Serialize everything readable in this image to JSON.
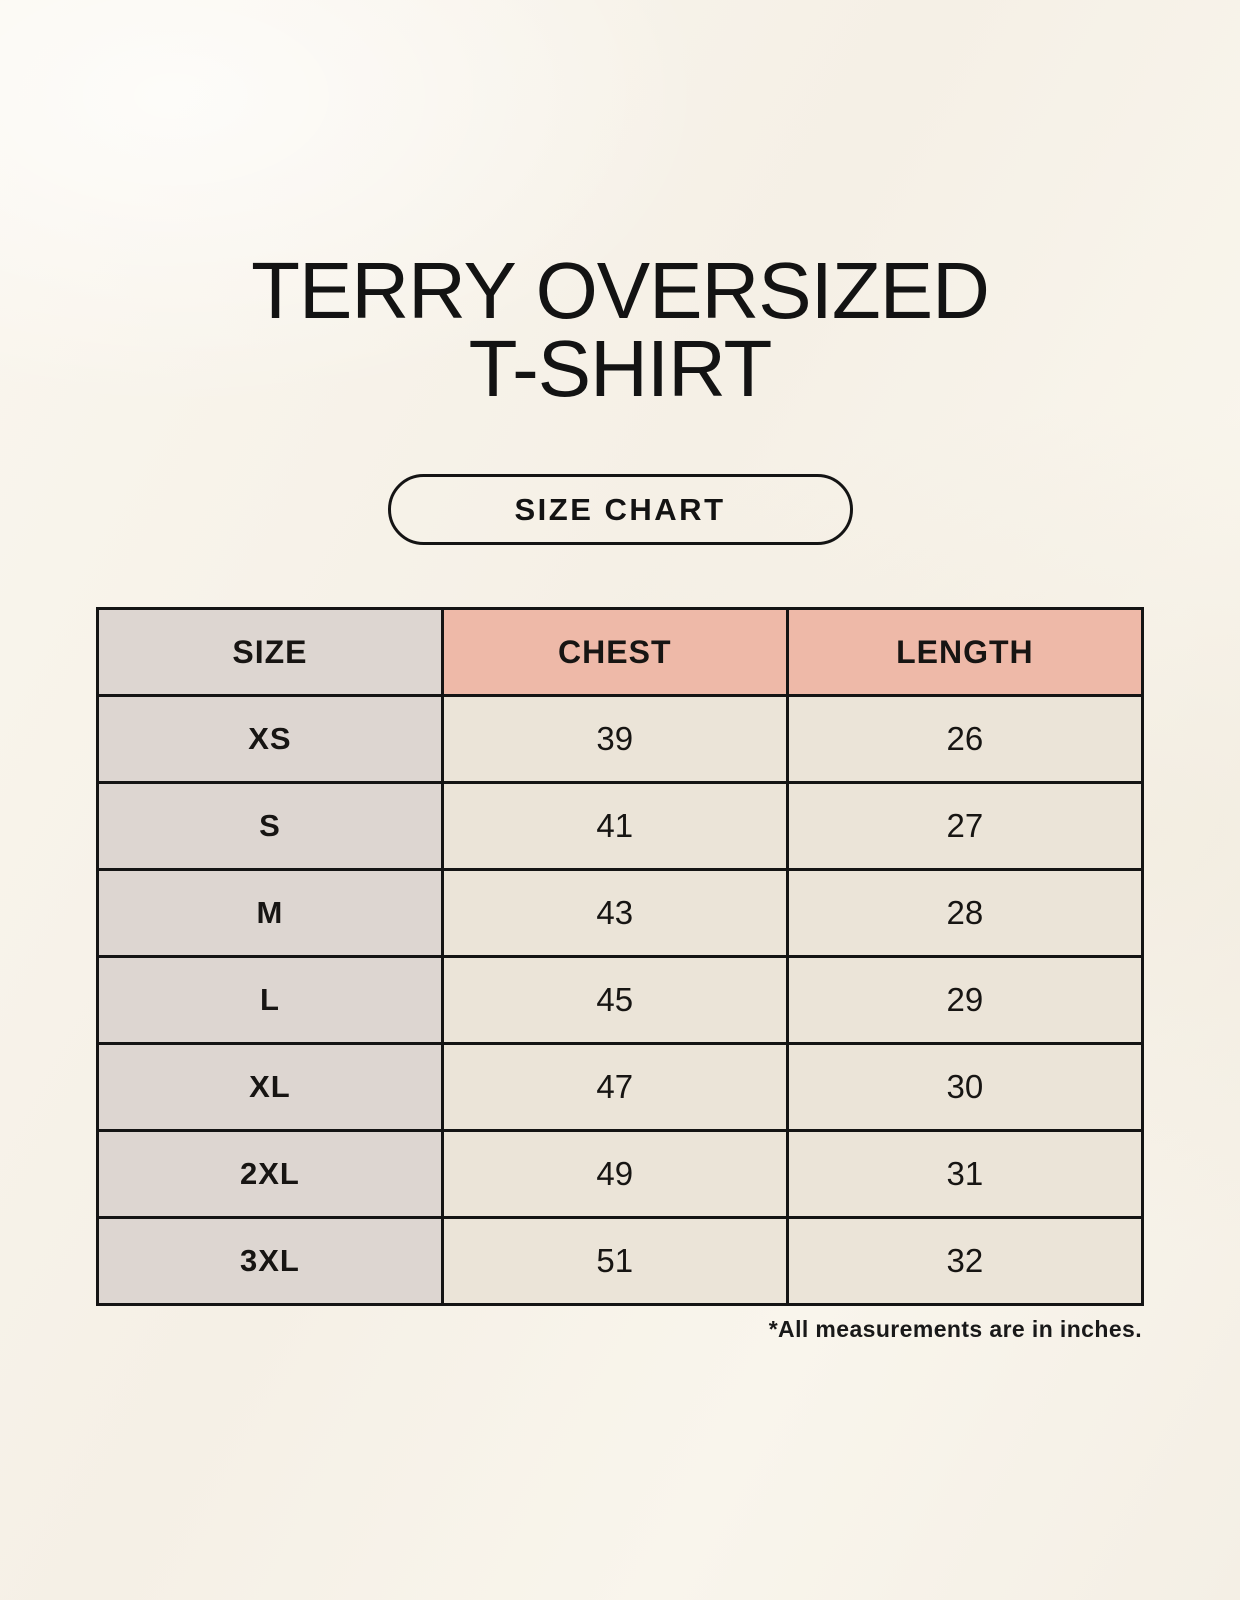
{
  "title": {
    "line1": "TERRY OVERSIZED",
    "line2": "T-SHIRT"
  },
  "button": {
    "label": "SIZE CHART"
  },
  "footnote": "*All measurements are in inches.",
  "colors": {
    "page_background": "#f8f4ec",
    "header_accent": "#eeb9a8",
    "size_column": "#ddd6d1",
    "value_cell": "#ebe4d8",
    "border": "#141414",
    "text": "#131313"
  },
  "chart_data": {
    "type": "table",
    "title": "TERRY OVERSIZED T-SHIRT",
    "columns": [
      "SIZE",
      "CHEST",
      "LENGTH"
    ],
    "rows": [
      {
        "size": "XS",
        "chest": 39,
        "length": 26
      },
      {
        "size": "S",
        "chest": 41,
        "length": 27
      },
      {
        "size": "M",
        "chest": 43,
        "length": 28
      },
      {
        "size": "L",
        "chest": 45,
        "length": 29
      },
      {
        "size": "XL",
        "chest": 47,
        "length": 30
      },
      {
        "size": "2XL",
        "chest": 49,
        "length": 31
      },
      {
        "size": "3XL",
        "chest": 51,
        "length": 32
      }
    ],
    "units": "inches",
    "note": "*All measurements are in inches."
  }
}
